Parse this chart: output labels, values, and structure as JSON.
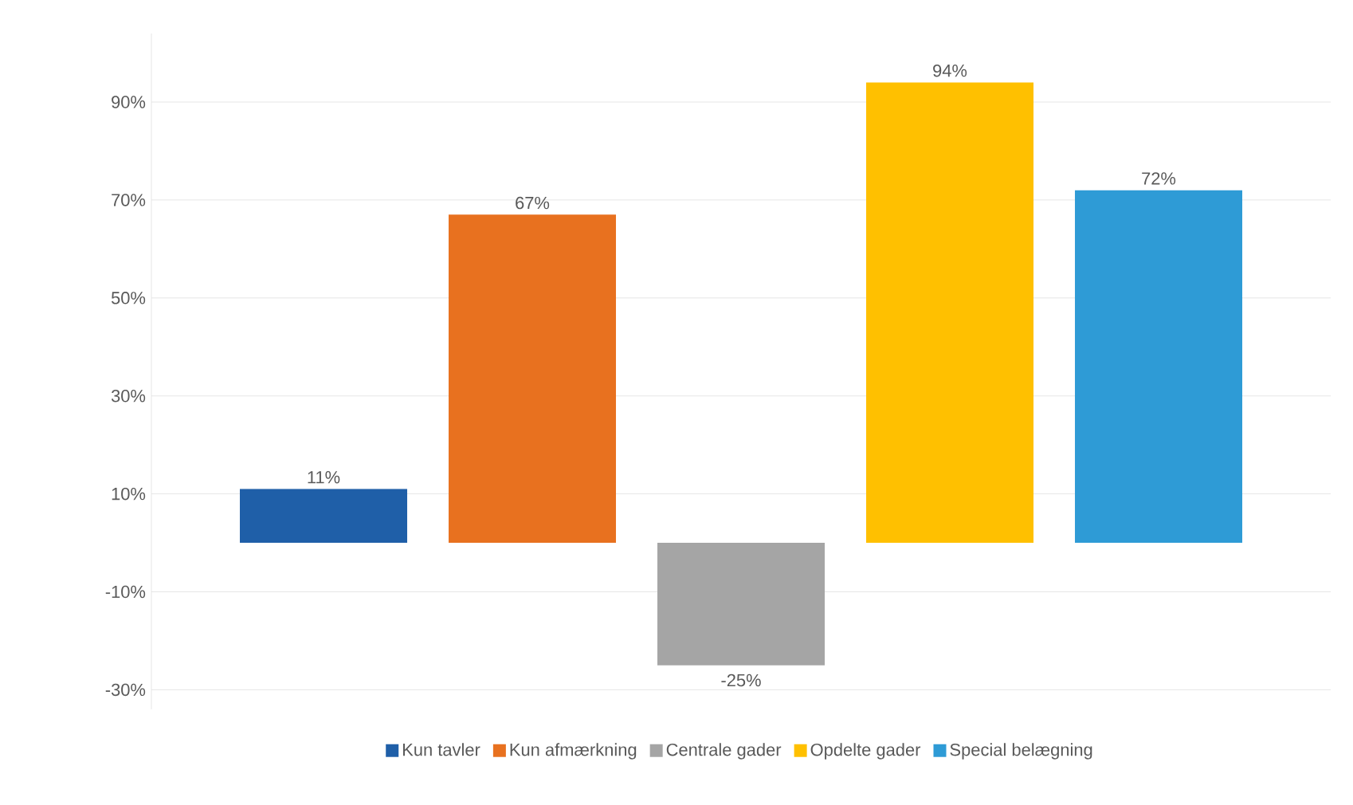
{
  "chart_data": {
    "type": "bar",
    "categories": [
      null
    ],
    "series": [
      {
        "name": "Kun tavler",
        "color": "#1f5fa8",
        "values": [
          11
        ],
        "value_labels": [
          "11%"
        ]
      },
      {
        "name": "Kun afmærkning",
        "color": "#e8711f",
        "values": [
          67
        ],
        "value_labels": [
          "67%"
        ]
      },
      {
        "name": "Centrale gader",
        "color": "#a5a5a5",
        "values": [
          -25
        ],
        "value_labels": [
          "-25%"
        ]
      },
      {
        "name": "Opdelte gader",
        "color": "#ffc000",
        "values": [
          94
        ],
        "value_labels": [
          "94%"
        ]
      },
      {
        "name": "Special belægning",
        "color": "#2e9bd6",
        "values": [
          72
        ],
        "value_labels": [
          "72%"
        ]
      }
    ],
    "ylim": [
      -34,
      104
    ],
    "yticks": [
      {
        "value": -30,
        "label": "-30%"
      },
      {
        "value": -10,
        "label": "-10%"
      },
      {
        "value": 10,
        "label": "10%"
      },
      {
        "value": 30,
        "label": "30%"
      },
      {
        "value": 50,
        "label": "50%"
      },
      {
        "value": 70,
        "label": "70%"
      },
      {
        "value": 90,
        "label": "90%"
      }
    ],
    "grid": "y",
    "legend": "bottom"
  }
}
